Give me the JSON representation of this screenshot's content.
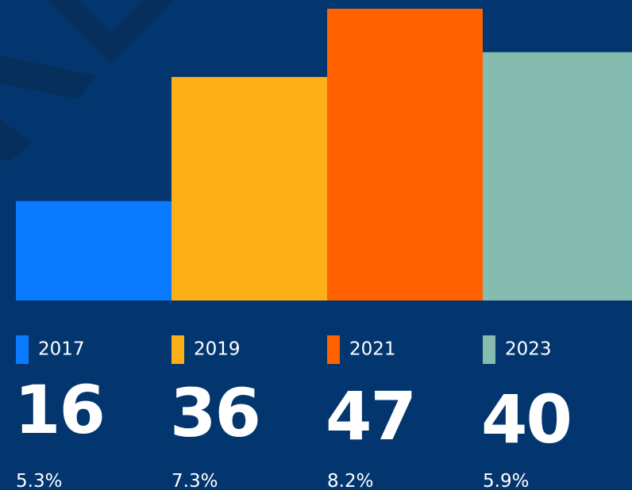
{
  "chart_data": {
    "type": "bar",
    "categories": [
      "2017",
      "2019",
      "2021",
      "2023"
    ],
    "values": [
      16,
      36,
      47,
      40
    ],
    "colors": [
      "#0a7bff",
      "#fdaf17",
      "#ff6000",
      "#86bcb0"
    ],
    "percent_labels": [
      "5.3%",
      "7.3%",
      "8.2%",
      "5.9%"
    ]
  }
}
